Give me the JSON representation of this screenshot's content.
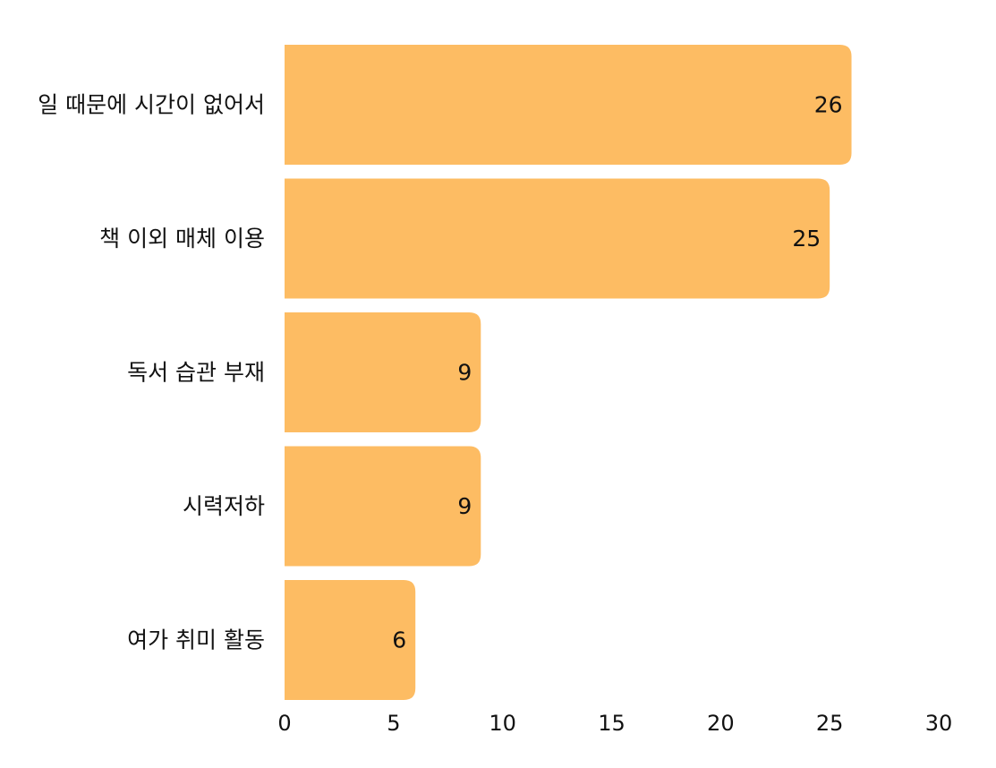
{
  "chart_data": {
    "type": "bar",
    "orientation": "horizontal",
    "categories": [
      "일 때문에 시간이 없어서",
      "책 이외 매체 이용",
      "독서 습관 부재",
      "시력저하",
      "여가 취미 활동"
    ],
    "values": [
      26,
      25,
      9,
      9,
      6
    ],
    "xlim": [
      0,
      30
    ],
    "xticks": [
      0,
      5,
      10,
      15,
      20,
      25,
      30
    ],
    "title": "",
    "xlabel": "",
    "ylabel": "",
    "grid": false,
    "legend": "none",
    "bar_color": "#FDBC63"
  }
}
